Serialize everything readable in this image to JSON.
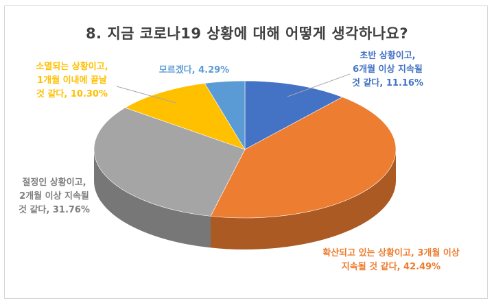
{
  "chart_data": {
    "type": "pie",
    "title": "8. 지금 코로나19 상황에 대해 어떻게 생각하나요?",
    "slices": [
      {
        "label": "초반 상황이고,\n6개월 이상 지속될\n것 같다, 11.16%",
        "value": 11.16,
        "color": "#4472c4"
      },
      {
        "label": "확산되고 있는 상황이고, 3개월 이상\n지속될 것 같다, 42.49%",
        "value": 42.49,
        "color": "#ed7d31"
      },
      {
        "label": "절정인 상황이고,\n2개월 이상 지속될\n것 같다, 31.76%",
        "value": 31.76,
        "color": "#a5a5a5"
      },
      {
        "label": "소멸되는 상황이고,\n1개월 이내에 끝날\n것 같다, 10.30%",
        "value": 10.3,
        "color": "#ffc000"
      },
      {
        "label": "모르겠다, 4.29%",
        "value": 4.29,
        "color": "#5b9bd5"
      }
    ],
    "legend": "none"
  }
}
